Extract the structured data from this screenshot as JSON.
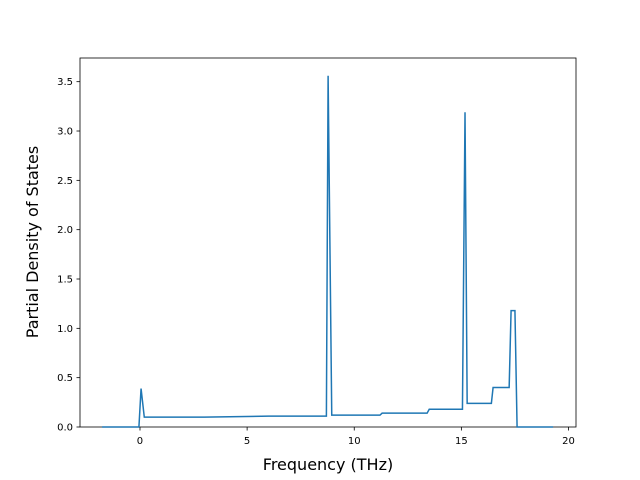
{
  "chart_data": {
    "type": "line",
    "x_label": "Frequency (THz)",
    "y_label": "Partial Density of States",
    "x": [
      -1.77,
      -0.05,
      0.05,
      0.2,
      3,
      6,
      8.7,
      8.78,
      8.95,
      11.2,
      11.3,
      13.4,
      13.5,
      15.05,
      15.17,
      15.27,
      16.4,
      16.48,
      17.23,
      17.32,
      17.5,
      17.6,
      19.28
    ],
    "series": [
      {
        "color": "#1f77b4",
        "values": [
          0,
          0,
          0.39,
          0.1,
          0.1,
          0.11,
          0.11,
          3.56,
          0.12,
          0.12,
          0.14,
          0.14,
          0.18,
          0.18,
          3.19,
          0.24,
          0.24,
          0.4,
          0.4,
          1.18,
          1.18,
          0,
          0
        ]
      }
    ],
    "xlim": [
      -2.8,
      20.35
    ],
    "ylim": [
      0,
      3.74
    ],
    "xticks": [
      0,
      5,
      10,
      15,
      20
    ],
    "yticks": [
      {
        "value": 0,
        "label": "0.0"
      },
      0.5,
      {
        "value": 1,
        "label": "1.0"
      },
      1.5,
      {
        "value": 2,
        "label": "2.0"
      },
      2.5,
      {
        "value": 3,
        "label": "3.0"
      },
      3.5
    ]
  }
}
